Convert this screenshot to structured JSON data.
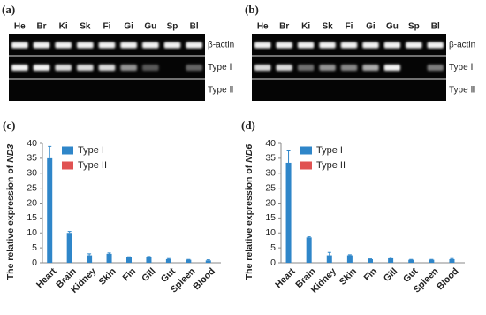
{
  "gels": [
    {
      "panel_label": "(a)",
      "lanes": [
        "He",
        "Br",
        "Ki",
        "Sk",
        "Fi",
        "Gi",
        "Gu",
        "Sp",
        "Bl"
      ],
      "rows": [
        "β-actin",
        "Type Ⅰ",
        "Type Ⅱ"
      ]
    },
    {
      "panel_label": "(b)",
      "lanes": [
        "He",
        "Br",
        "Ki",
        "Sk",
        "Fi",
        "Gi",
        "Gu",
        "Sp",
        "Bl"
      ],
      "rows": [
        "β-actin",
        "Type Ⅰ",
        "Type Ⅱ"
      ]
    }
  ],
  "chart_data": [
    {
      "type": "bar",
      "panel_label": "(c)",
      "ylabel": "The relative expression of",
      "ylabel_italic": "ND3",
      "categories": [
        "Heart",
        "Brain",
        "Kidney",
        "Skin",
        "Fin",
        "Gill",
        "Gut",
        "Spleen",
        "Blood"
      ],
      "series": [
        {
          "name": "Type I",
          "color": "#2f86c9",
          "values": [
            35,
            10,
            2.5,
            3,
            1.8,
            1.8,
            1.2,
            1,
            0.8
          ],
          "errors": [
            4,
            0.5,
            0.5,
            0.3,
            0.2,
            0.3,
            0.2,
            0.1,
            0.2
          ]
        },
        {
          "name": "Type II",
          "color": "#e05252",
          "values": [
            0,
            0,
            0,
            0,
            0,
            0,
            0,
            0,
            0
          ]
        }
      ],
      "ylim": [
        0,
        40
      ],
      "yticks": [
        0,
        5,
        10,
        15,
        20,
        25,
        30,
        35,
        40
      ]
    },
    {
      "type": "bar",
      "panel_label": "(d)",
      "ylabel": "The relative expression of",
      "ylabel_italic": "ND6",
      "categories": [
        "Heart",
        "Brain",
        "Kidney",
        "Skin",
        "Fin",
        "Gill",
        "Gut",
        "Spleen",
        "Blood"
      ],
      "series": [
        {
          "name": "Type I",
          "color": "#2f86c9",
          "values": [
            33.5,
            8.5,
            2.5,
            2.5,
            1.2,
            1.5,
            1,
            1,
            1.2
          ],
          "errors": [
            4,
            0.2,
            1,
            0.2,
            0.1,
            0.4,
            0.1,
            0.1,
            0.2
          ]
        },
        {
          "name": "Type II",
          "color": "#e05252",
          "values": [
            0,
            0,
            0,
            0,
            0,
            0,
            0,
            0,
            0
          ]
        }
      ],
      "ylim": [
        0,
        40
      ],
      "yticks": [
        0,
        5,
        10,
        15,
        20,
        25,
        30,
        35,
        40
      ]
    }
  ]
}
